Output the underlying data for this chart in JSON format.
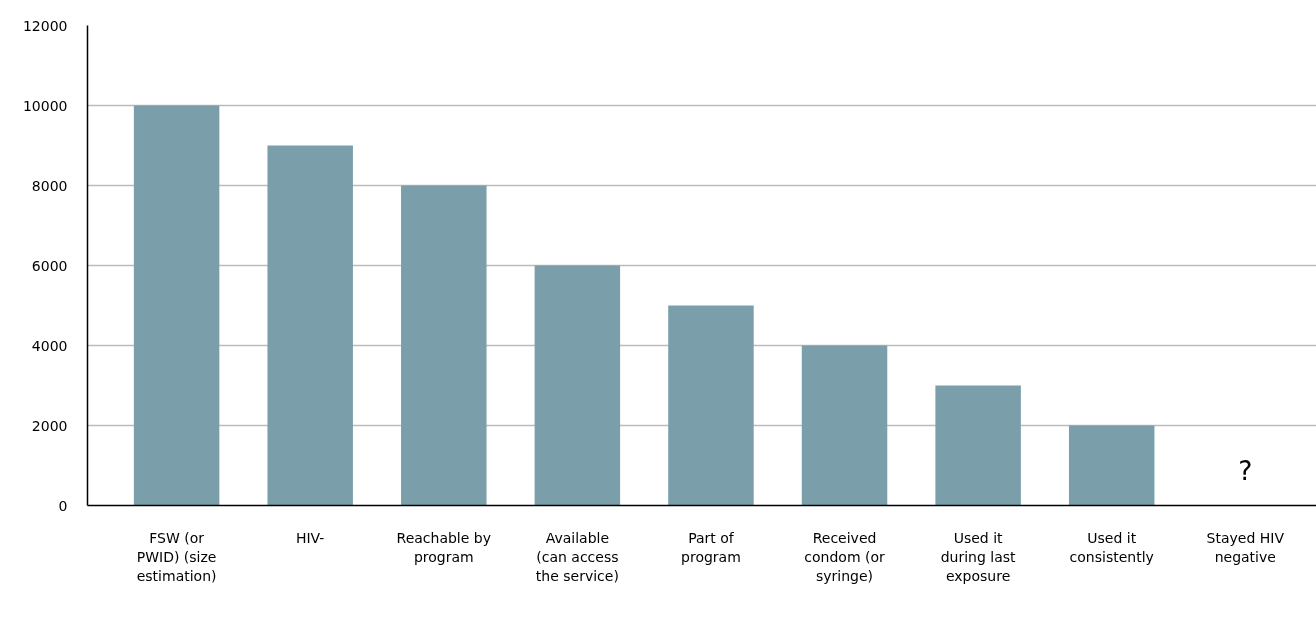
{
  "chart_data": {
    "type": "bar",
    "categories": [
      "FSW (or PWID) (size estimation)",
      "HIV-",
      "Reachable by program",
      "Available (can access the service)",
      "Part of program",
      "Received condom (or syringe)",
      "Used it during last exposure",
      "Used it consistently",
      "Stayed HIV negative"
    ],
    "values": [
      10000,
      9000,
      8000,
      6000,
      5000,
      4000,
      3000,
      2000,
      null
    ],
    "color": "#7a9fab",
    "ylim": [
      0,
      12000
    ],
    "yticks": [
      0,
      2000,
      4000,
      6000,
      8000,
      10000,
      12000
    ],
    "grid": "y",
    "annotations": [
      "?"
    ]
  }
}
